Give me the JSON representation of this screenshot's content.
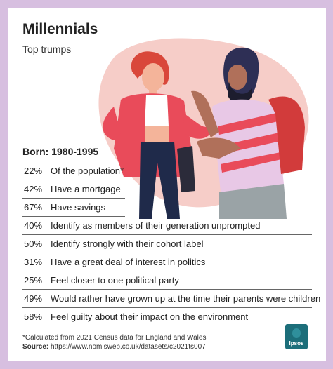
{
  "header": {
    "title": "Millennials",
    "subtitle": "Top trumps"
  },
  "born_label": "Born: 1980-1995",
  "stats": [
    {
      "pct": "22%",
      "label": "Of the population*"
    },
    {
      "pct": "42%",
      "label": "Have a mortgage"
    },
    {
      "pct": "67%",
      "label": "Have savings"
    },
    {
      "pct": "40%",
      "label": "Identify as members of their generation unprompted"
    },
    {
      "pct": "50%",
      "label": "Identify strongly with their cohort label"
    },
    {
      "pct": "31%",
      "label": "Have a great deal of interest in politics"
    },
    {
      "pct": "25%",
      "label": "Feel closer to one political party"
    },
    {
      "pct": "49%",
      "label": "Would rather have grown up at the time their parents were children"
    },
    {
      "pct": "58%",
      "label": "Feel guilty about their impact on the environment"
    }
  ],
  "footnote": "*Calculated from 2021 Census data for England and Wales",
  "source": {
    "label": "Source:",
    "text": "https://www.nomisweb.co.uk/datasets/c2021ts007"
  },
  "logo_text": "Ipsos",
  "colors": {
    "border": "#d7bfe0",
    "blob": "#f6cdc8",
    "logo": "#1c6e7a"
  }
}
